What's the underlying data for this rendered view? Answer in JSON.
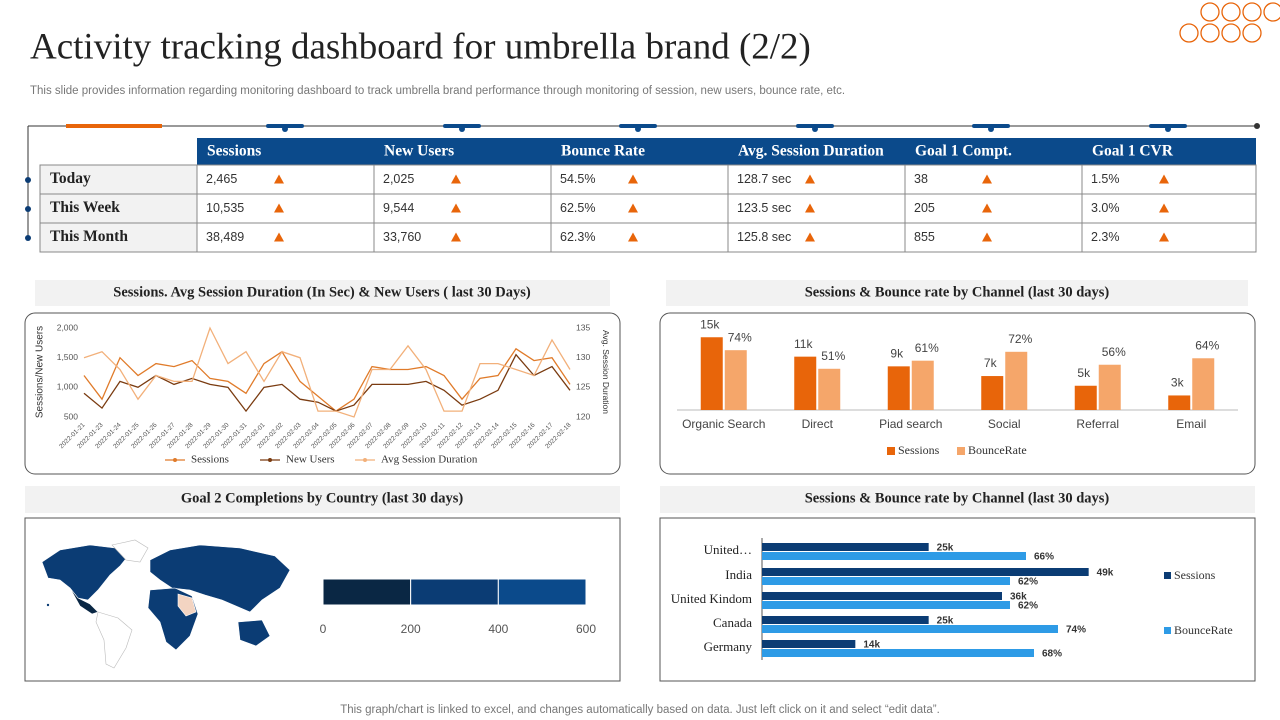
{
  "title": "Activity tracking dashboard for umbrella brand (2/2)",
  "subtitle": "This slide provides information regarding monitoring dashboard to track umbrella brand performance through monitoring of session, new users, bounce rate, etc.",
  "table": {
    "columns": [
      "Sessions",
      "New Users",
      "Bounce Rate",
      "Avg. Session Duration",
      "Goal 1 Compt.",
      "Goal 1 CVR"
    ],
    "rows": [
      {
        "label": "Today",
        "cells": [
          "2,465",
          "2,025",
          "54.5%",
          "128.7  sec",
          "38",
          "1.5%"
        ]
      },
      {
        "label": "This Week",
        "cells": [
          "10,535",
          "9,544",
          "62.5%",
          "123.5  sec",
          "205",
          "3.0%"
        ]
      },
      {
        "label": "This Month",
        "cells": [
          "38,489",
          "33,760",
          "62.3%",
          "125.8  sec",
          "855",
          "2.3%"
        ]
      }
    ]
  },
  "chart_data": [
    {
      "type": "line",
      "title": "Sessions. Avg Session Duration (In Sec) & New Users ( last 30 Days)",
      "ylabel": "Sessions/New Users",
      "y2label": "Avg. Session Duration",
      "categories": [
        "2022-01-21",
        "2022-01-23",
        "2022-01-24",
        "2022-01-25",
        "2022-01-26",
        "2022-01-27",
        "2022-01-28",
        "2022-01-29",
        "2022-01-30",
        "2022-01-31",
        "2022-02-01",
        "2022-02-02",
        "2022-02-03",
        "2022-02-04",
        "2022-02-05",
        "2022-02-06",
        "2022-02-07",
        "2022-02-08",
        "2022-02-09",
        "2022-02-10",
        "2022-02-11",
        "2022-02-12",
        "2022-02-13",
        "2022-02-14",
        "2022-02-15",
        "2022-02-16",
        "2022-02-17",
        "2022-02-18"
      ],
      "series": [
        {
          "name": "Sessions",
          "color": "#e07b2a",
          "values": [
            1200,
            800,
            1500,
            1200,
            1400,
            1350,
            1450,
            1150,
            1100,
            900,
            1400,
            1600,
            1100,
            850,
            600,
            800,
            1350,
            1300,
            1300,
            1350,
            1200,
            800,
            1150,
            1200,
            1650,
            1450,
            1500,
            1050
          ]
        },
        {
          "name": "New Users",
          "color": "#7a3b10",
          "values": [
            900,
            650,
            1100,
            1000,
            1200,
            1050,
            1150,
            1050,
            1000,
            600,
            1000,
            1050,
            800,
            750,
            600,
            700,
            1050,
            1050,
            1050,
            1100,
            950,
            700,
            800,
            950,
            1550,
            1200,
            1350,
            950
          ]
        },
        {
          "name": "Avg Session Duration",
          "color": "#f2b07a",
          "axis": "y2",
          "values": [
            130,
            131,
            128,
            123,
            127,
            126,
            126,
            135,
            129,
            131,
            126,
            131,
            130,
            121,
            121,
            120,
            128,
            128,
            132,
            128,
            121,
            121,
            129,
            129,
            128,
            127,
            133,
            128
          ]
        }
      ],
      "ylim": [
        500,
        2000
      ],
      "yticks": [
        500,
        {
          "value": 1000,
          "label": "1,000"
        },
        {
          "value": 1500,
          "label": "1,500"
        },
        {
          "value": 2000,
          "label": "2,000"
        }
      ],
      "y2lim": [
        120,
        135
      ],
      "y2ticks": [
        120,
        125,
        130,
        135
      ]
    },
    {
      "type": "bar",
      "title": "Sessions & Bounce rate by Channel (last 30 days)",
      "categories": [
        "Organic Search",
        "Direct",
        "Piad search",
        "Social",
        "Referral",
        "Email"
      ],
      "series": [
        {
          "name": "Sessions",
          "color": "#e8650a",
          "values": [
            15000,
            11000,
            9000,
            7000,
            5000,
            3000
          ],
          "value_labels": [
            "15k",
            "11k",
            "9k",
            "7k",
            "5k",
            "3k"
          ]
        },
        {
          "name": "BounceRate",
          "color": "#f5a66a",
          "axis": "y2",
          "values": [
            74,
            51,
            61,
            72,
            56,
            64
          ],
          "value_labels": [
            "74%",
            "51%",
            "61%",
            "72%",
            "56%",
            "64%"
          ]
        }
      ],
      "ylim": [
        0,
        20000
      ],
      "y2lim": [
        0,
        120
      ]
    },
    {
      "type": "stacked_hbar",
      "title": "Goal 2 Completions by Country (last 30 days)",
      "series": [
        {
          "color": "#0a2744",
          "values": [
            200
          ]
        },
        {
          "color": "#0b3c74",
          "values": [
            200
          ]
        },
        {
          "color": "#0b4a8b",
          "values": [
            200
          ]
        }
      ],
      "xlim": [
        0,
        600
      ],
      "xticks": [
        0,
        200,
        400,
        600
      ]
    },
    {
      "type": "hbar",
      "title": "Sessions & Bounce rate by Channel (last 30 days)",
      "categories": [
        "United…",
        "India",
        "United Kindom",
        "Canada",
        "Germany"
      ],
      "series": [
        {
          "name": "Sessions",
          "color": "#0b3c74",
          "values": [
            25000,
            49000,
            36000,
            25000,
            14000
          ],
          "value_labels": [
            "25k",
            "49k",
            "36k",
            "25k",
            "14k"
          ]
        },
        {
          "name": "BounceRate",
          "color": "#2e9be6",
          "axis": "x2",
          "values": [
            66,
            62,
            62,
            74,
            68
          ],
          "value_labels": [
            "66%",
            "62%",
            "62%",
            "74%",
            "68%"
          ]
        }
      ],
      "xlim": [
        0,
        60000
      ],
      "x2lim": [
        0,
        100
      ]
    }
  ],
  "footer": "This graph/chart is linked to excel, and changes automatically based on data. Just left click on it and select “edit data”."
}
